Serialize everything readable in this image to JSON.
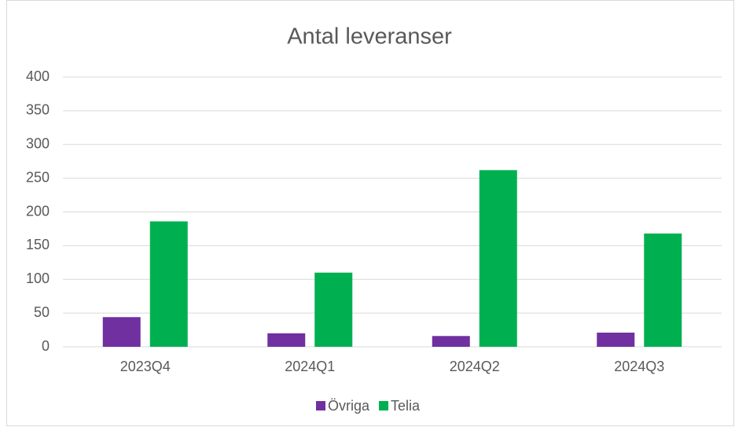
{
  "chart_data": {
    "type": "bar",
    "title": "Antal leveranser",
    "categories": [
      "2023Q4",
      "2024Q1",
      "2024Q2",
      "2024Q3"
    ],
    "series": [
      {
        "name": "Övriga",
        "color": "#7030a0",
        "values": [
          44,
          20,
          16,
          21
        ]
      },
      {
        "name": "Telia",
        "color": "#00b050",
        "values": [
          186,
          110,
          262,
          168
        ]
      }
    ],
    "ylim": [
      0,
      400
    ],
    "yticks": [
      0,
      50,
      100,
      150,
      200,
      250,
      300,
      350,
      400
    ],
    "grid": true,
    "legend": "bottom"
  }
}
